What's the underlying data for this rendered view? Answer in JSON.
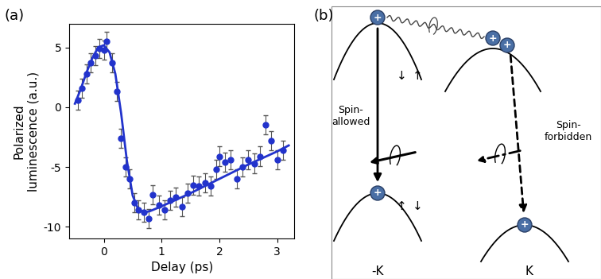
{
  "chart_data": {
    "type": "scatter",
    "x_label": "Delay (ps)",
    "y_label": "Polarized\nluminescence (a.u.)",
    "xlim": [
      -0.6,
      3.3
    ],
    "xticks": [
      0,
      1,
      2,
      3
    ],
    "ylim": [
      -11,
      7
    ],
    "yticks": [
      -10,
      -5,
      0,
      5
    ],
    "series": [
      {
        "type": "scatter",
        "color": "#2233cc",
        "marker": "o",
        "x": [
          -0.45,
          -0.375,
          -0.3,
          -0.225,
          -0.15,
          -0.075,
          0.0,
          0.05,
          0.15,
          0.225,
          0.3,
          0.375,
          0.45,
          0.525,
          0.6,
          0.7,
          0.78,
          0.85,
          0.95,
          1.05,
          1.15,
          1.25,
          1.35,
          1.45,
          1.55,
          1.65,
          1.75,
          1.85,
          1.95,
          2.0,
          2.1,
          2.2,
          2.3,
          2.4,
          2.5,
          2.6,
          2.7,
          2.8,
          2.9,
          3.0,
          3.1
        ],
        "values": [
          0.6,
          1.6,
          2.8,
          3.7,
          4.3,
          4.9,
          4.8,
          5.5,
          3.7,
          1.3,
          -2.6,
          -5.0,
          -6.0,
          -8.0,
          -8.6,
          -8.8,
          -9.3,
          -7.3,
          -8.2,
          -8.6,
          -7.8,
          -7.5,
          -8.3,
          -7.2,
          -6.5,
          -6.6,
          -6.3,
          -6.6,
          -5.2,
          -4.1,
          -4.6,
          -4.4,
          -6.0,
          -5.0,
          -4.4,
          -4.7,
          -4.1,
          -1.5,
          -2.8,
          -4.4,
          -3.6
        ],
        "errors": [
          0.8,
          0.8,
          0.8,
          0.8,
          0.8,
          0.8,
          0.8,
          0.8,
          0.8,
          0.8,
          0.8,
          0.8,
          0.8,
          0.8,
          0.8,
          0.8,
          0.8,
          0.8,
          0.8,
          0.8,
          0.8,
          0.8,
          0.8,
          0.8,
          0.8,
          0.8,
          0.8,
          0.8,
          0.8,
          0.8,
          0.8,
          0.8,
          0.8,
          0.8,
          0.8,
          0.8,
          0.8,
          0.8,
          0.8,
          0.8,
          0.8
        ]
      },
      {
        "type": "line",
        "color": "#2233cc",
        "line_style": "solid",
        "x": [
          -0.5,
          -0.4,
          -0.3,
          -0.2,
          -0.1,
          0.0,
          0.1,
          0.2,
          0.3,
          0.4,
          0.5,
          0.6,
          0.7,
          0.8,
          1.0,
          1.5,
          2.0,
          2.5,
          3.0,
          3.2
        ],
        "values": [
          0.3,
          1.5,
          2.9,
          4.1,
          5.0,
          5.2,
          4.6,
          2.8,
          -0.5,
          -4.5,
          -7.4,
          -8.6,
          -8.8,
          -8.7,
          -8.3,
          -7.2,
          -6.0,
          -4.8,
          -3.7,
          -3.2
        ]
      }
    ]
  },
  "panel_labels": [
    "(a)",
    "(b)"
  ],
  "diagram": {
    "valleys": [
      "-K",
      "K"
    ],
    "spins_top": [
      "↓",
      "↑"
    ],
    "spins_bottom": [
      "↑",
      "↓"
    ],
    "particle_label": "+",
    "transitions": [
      "Spin-\nallowed",
      "Spin-\nforbidden"
    ]
  }
}
